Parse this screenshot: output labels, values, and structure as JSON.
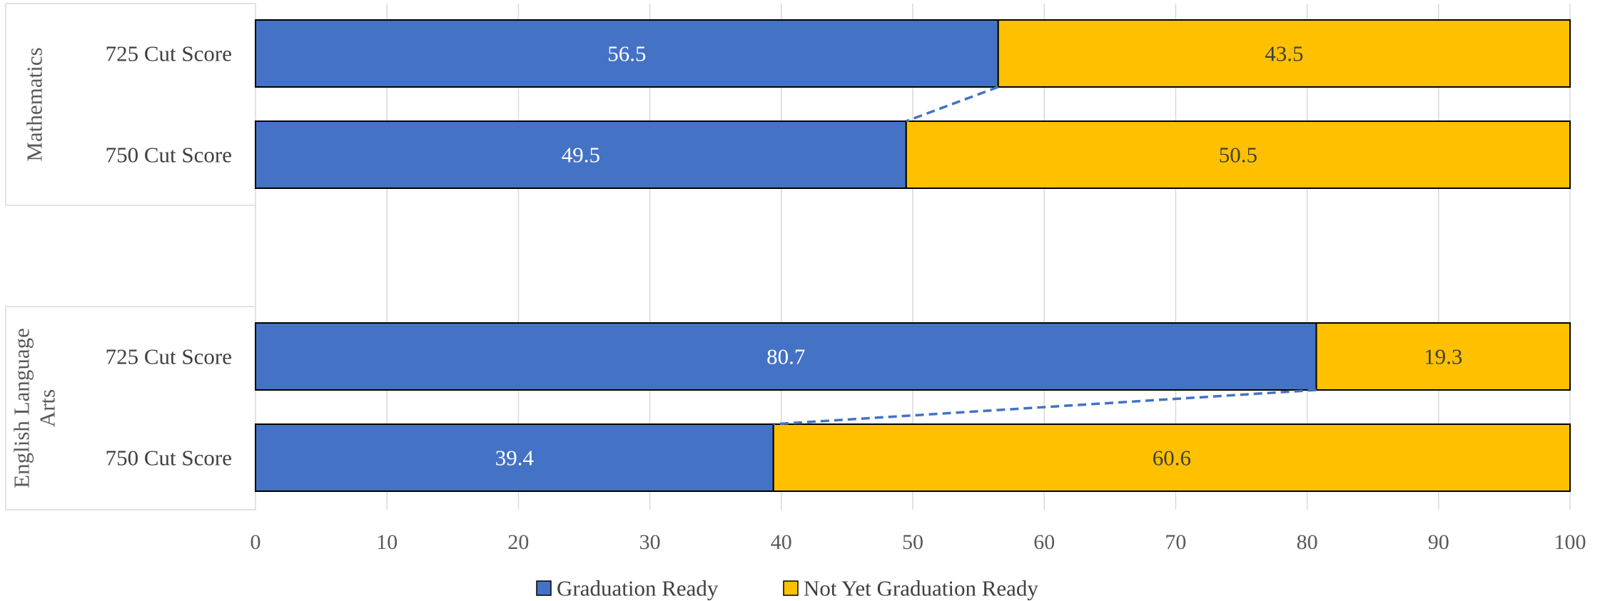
{
  "chart_data": {
    "type": "bar",
    "orientation": "horizontal",
    "stacked": true,
    "title": "",
    "xlabel": "",
    "ylabel": "",
    "xlim": [
      0,
      100
    ],
    "x_ticks": [
      0,
      10,
      20,
      30,
      40,
      50,
      60,
      70,
      80,
      90,
      100
    ],
    "grid": true,
    "legend_position": "bottom",
    "groups": [
      {
        "name": "Mathematics",
        "categories": [
          "725 Cut Score",
          "750 Cut Score"
        ],
        "series": [
          {
            "name": "Graduation Ready",
            "values": [
              56.5,
              49.5
            ]
          },
          {
            "name": "Not Yet Graduation Ready",
            "values": [
              43.5,
              50.5
            ]
          }
        ]
      },
      {
        "name": "English Language Arts",
        "name_lines": [
          "English Language",
          "Arts"
        ],
        "categories": [
          "725 Cut Score",
          "750 Cut Score"
        ],
        "series": [
          {
            "name": "Graduation Ready",
            "values": [
              80.7,
              39.4
            ]
          },
          {
            "name": "Not Yet Graduation Ready",
            "values": [
              19.3,
              60.6
            ]
          }
        ]
      }
    ],
    "series_colors": {
      "Graduation Ready": "#4472C4",
      "Not Yet Graduation Ready": "#FFC000"
    },
    "label_colors": {
      "Graduation Ready": "#ffffff",
      "Not Yet Graduation Ready": "#404040"
    },
    "connector_color": "#4472C4",
    "legend": [
      "Graduation Ready",
      "Not Yet Graduation Ready"
    ]
  }
}
